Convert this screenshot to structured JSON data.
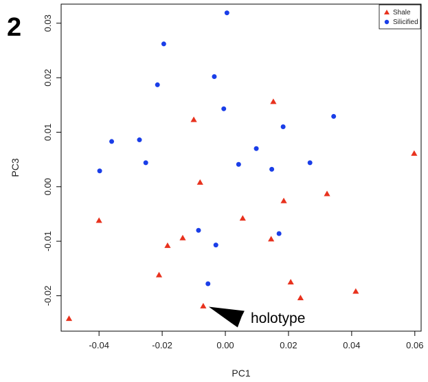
{
  "panel_label": "2",
  "chart_data": {
    "type": "scatter",
    "xlabel": "PC1",
    "ylabel": "PC3",
    "xlim": [
      -0.052,
      0.062
    ],
    "ylim": [
      -0.0265,
      0.0335
    ],
    "x_ticks": [
      -0.04,
      -0.02,
      0.0,
      0.02,
      0.04,
      0.06
    ],
    "x_tick_labels": [
      "-0.04",
      "-0.02",
      "0.00",
      "0.02",
      "0.04",
      "0.06"
    ],
    "y_ticks": [
      -0.02,
      -0.01,
      0.0,
      0.01,
      0.02,
      0.03
    ],
    "y_tick_labels": [
      "-0.02",
      "-0.01",
      "0.00",
      "0.01",
      "0.02",
      "0.03"
    ],
    "grid": false,
    "legend_position": "top-right",
    "series": [
      {
        "name": "Shale",
        "marker": "triangle",
        "color": "#e8321e",
        "points": [
          [
            -0.0495,
            -0.0242
          ],
          [
            -0.04,
            -0.0062
          ],
          [
            -0.021,
            -0.0162
          ],
          [
            -0.0183,
            -0.0108
          ],
          [
            -0.0135,
            -0.0094
          ],
          [
            -0.01,
            0.0123
          ],
          [
            -0.008,
            0.0008
          ],
          [
            -0.007,
            -0.0219
          ],
          [
            0.0055,
            -0.0058
          ],
          [
            0.0145,
            -0.0096
          ],
          [
            0.0152,
            0.0156
          ],
          [
            0.0185,
            -0.0026
          ],
          [
            0.0207,
            -0.0175
          ],
          [
            0.0238,
            -0.0204
          ],
          [
            0.0322,
            -0.0013
          ],
          [
            0.0413,
            -0.0192
          ],
          [
            0.0598,
            0.0061
          ]
        ]
      },
      {
        "name": "Silicified",
        "marker": "circle",
        "color": "#1a3ee8",
        "points": [
          [
            -0.0398,
            0.0029
          ],
          [
            -0.036,
            0.0083
          ],
          [
            -0.0272,
            0.0086
          ],
          [
            -0.0252,
            0.0044
          ],
          [
            -0.0215,
            0.0187
          ],
          [
            -0.0195,
            0.0262
          ],
          [
            -0.0085,
            -0.008
          ],
          [
            -0.0055,
            -0.0178
          ],
          [
            -0.0035,
            0.0202
          ],
          [
            -0.003,
            -0.0107
          ],
          [
            -0.0005,
            0.0143
          ],
          [
            0.0005,
            0.0319
          ],
          [
            0.0042,
            0.0041
          ],
          [
            0.0098,
            0.007
          ],
          [
            0.0147,
            0.0032
          ],
          [
            0.017,
            -0.0086
          ],
          [
            0.0183,
            0.011
          ],
          [
            0.0268,
            0.0044
          ],
          [
            0.0343,
            0.0129
          ]
        ]
      }
    ],
    "annotations": [
      {
        "text": "holotype",
        "target": [
          -0.007,
          -0.0219
        ]
      }
    ]
  }
}
